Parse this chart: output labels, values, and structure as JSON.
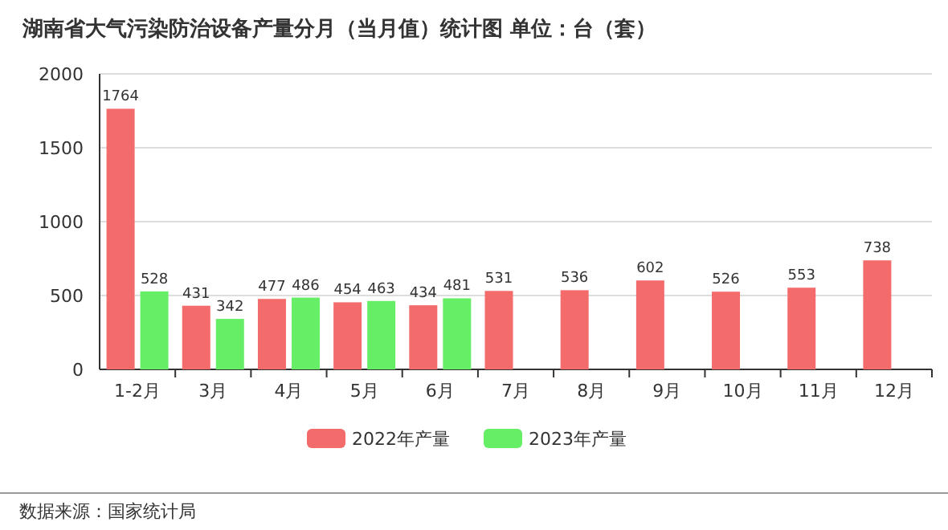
{
  "chart_data": {
    "type": "bar",
    "title": "湖南省大气污染防治设备产量分月（当月值）统计图 单位：台（套）",
    "categories": [
      "1-2月",
      "3月",
      "4月",
      "5月",
      "6月",
      "7月",
      "8月",
      "9月",
      "10月",
      "11月",
      "12月"
    ],
    "series": [
      {
        "name": "2022年产量",
        "color": "#f46b6b",
        "values": [
          1764,
          431,
          477,
          454,
          434,
          531,
          536,
          602,
          526,
          553,
          738
        ]
      },
      {
        "name": "2023年产量",
        "color": "#66ee66",
        "values": [
          528,
          342,
          486,
          463,
          481,
          null,
          null,
          null,
          null,
          null,
          null
        ]
      }
    ],
    "ylim": [
      0,
      2000
    ],
    "yticks": [
      0,
      500,
      1000,
      1500,
      2000
    ],
    "grid": "y",
    "legend": "bottom",
    "data_labels": true,
    "annotations": [
      "数据来源：国家统计局"
    ]
  }
}
